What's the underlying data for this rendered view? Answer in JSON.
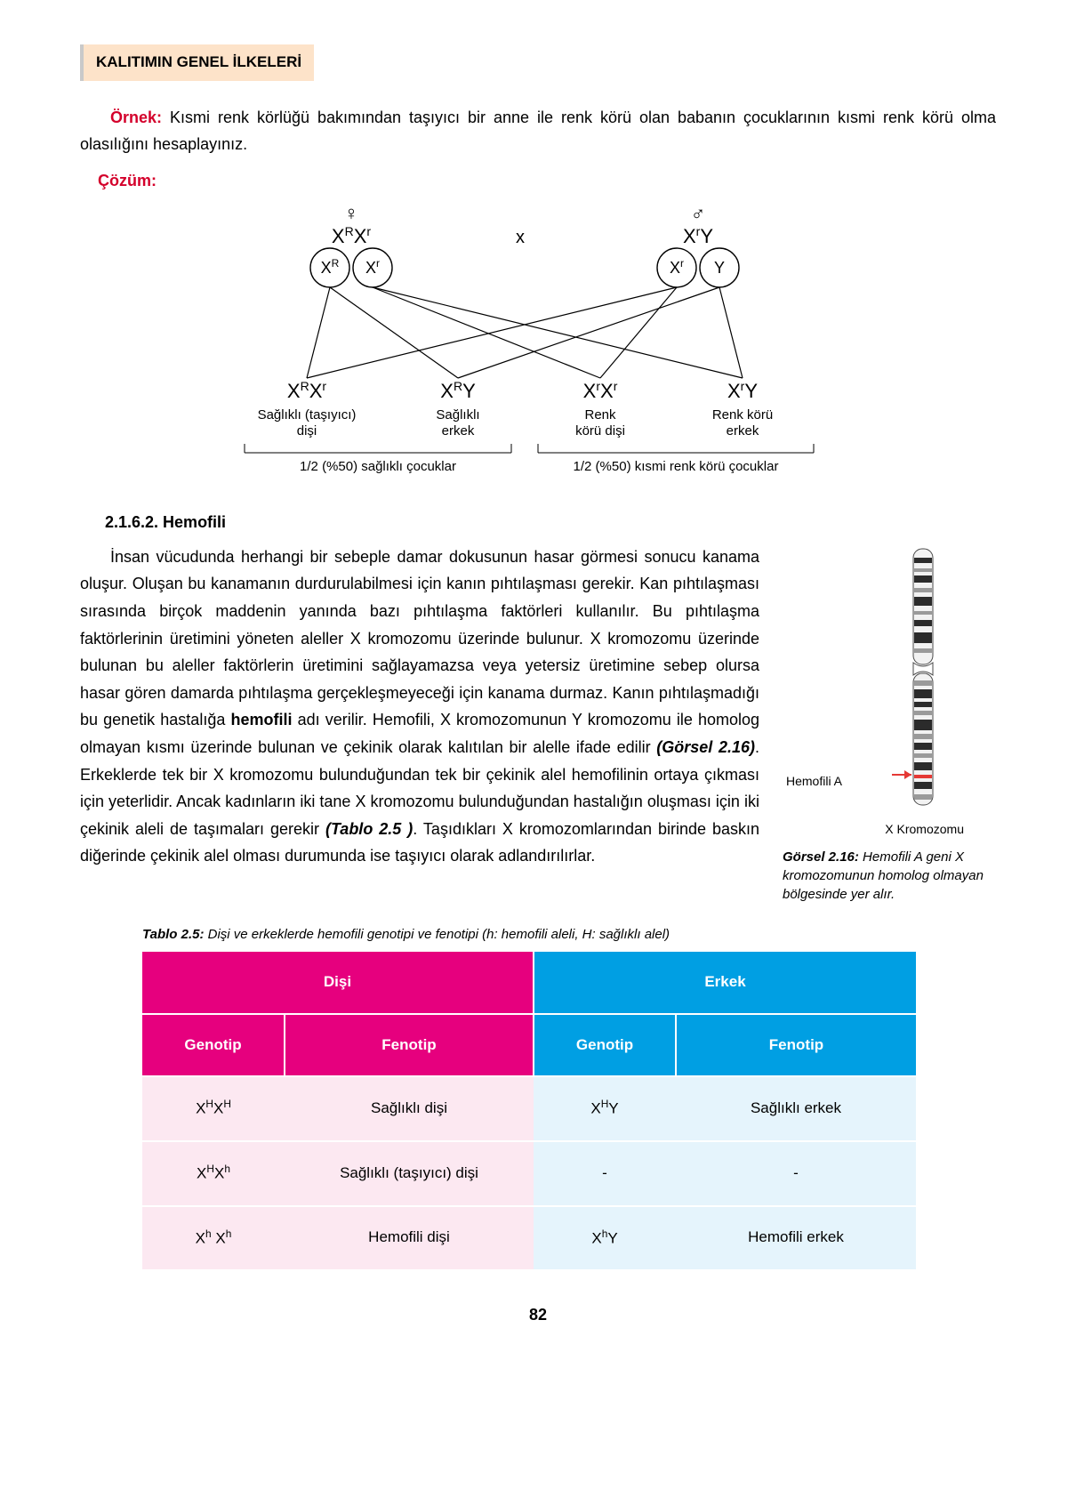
{
  "chapter": "KALITIMIN GENEL İLKELERİ",
  "example": {
    "label": "Örnek:",
    "text": " Kısmi renk körlüğü bakımından taşıyıcı bir anne ile renk körü olan babanın çocuklarının kısmi renk körü olma olasılığını hesaplayınız."
  },
  "solution_label": "Çözüm:",
  "punnett": {
    "mother_symbol": "♀",
    "father_symbol": "♂",
    "cross_x": "x",
    "parents": {
      "mother_genotype_html": "X<sup>R</sup>X<sup>r</sup>",
      "father_genotype_html": "X<sup>r</sup>Y",
      "mother_gametes": [
        "X<sup>R</sup>",
        "X<sup>r</sup>"
      ],
      "father_gametes": [
        "X<sup>r</sup>",
        "Y"
      ]
    },
    "offspring": [
      {
        "geno": "X<sup>R</sup>X<sup>r</sup>",
        "pheno1": "Sağlıklı (taşıyıcı)",
        "pheno2": "dişi"
      },
      {
        "geno": "X<sup>R</sup>Y",
        "pheno1": "Sağlıklı",
        "pheno2": "erkek"
      },
      {
        "geno": "X<sup>r</sup>X<sup>r</sup>",
        "pheno1": "Renk",
        "pheno2": "körü dişi"
      },
      {
        "geno": "X<sup>r</sup>Y",
        "pheno1": "Renk körü",
        "pheno2": "erkek"
      }
    ],
    "summary_left": "1/2 (%50) sağlıklı çocuklar",
    "summary_right": "1/2 (%50) kısmi renk körü çocuklar"
  },
  "section_heading": "2.1.6.2. Hemofili",
  "hemofili_paragraph_parts": {
    "p1": "İnsan vücudunda herhangi bir sebeple damar dokusunun hasar görmesi sonucu kanama oluşur. Oluşan bu kanamanın durdurulabilmesi için kanın pıhtılaşması gerekir. Kan pıhtılaşması sırasında birçok maddenin yanında bazı pıhtılaşma faktörleri kullanılır. Bu pıhtılaşma faktörlerinin üretimini yöneten aleller X kromozomu üzerinde bulunur. X kromozomu üzerinde bulunan bu aleller faktörlerin üretimini sağlayamazsa veya yetersiz üretimine sebep olursa hasar gören damarda pıhtılaşma gerçekleşmeyeceği için kanama durmaz. Kanın pıhtılaşmadığı bu genetik hastalığa ",
    "p1b": "hemofili",
    "p1c": " adı verilir. Hemofili, X kromozomunun Y kromozomu ile homolog olmayan kısmı üzerinde bulunan ve çekinik olarak kalıtılan bir alelle ifade edilir ",
    "ref1": "(Görsel 2.16)",
    "p1d": ". Erkeklerde tek bir X kromozomu bulunduğundan tek bir çekinik alel hemofilinin ortaya çıkması için yeterlidir. Ancak kadınların iki tane X kromozomu bulunduğundan hastalığın oluşması için iki çekinik aleli de taşımaları gerekir ",
    "ref2": "(Tablo 2.5 )",
    "p1e": ". Taşıdıkları X kromozomlarından birinde baskın diğerinde çekinik alel olması durumunda ise taşıyıcı olarak adlandırılırlar."
  },
  "figure": {
    "label_a": "Hemofili A",
    "label_x": "X Kromozomu",
    "caption_bold": "Görsel 2.16:",
    "caption_rest": " Hemofili A geni X kromozomunun homolog olmayan bölgesinde yer alır.",
    "arrow_color": "#e53935",
    "band_colors": {
      "dark": "#2b2b2b",
      "gray": "#9a9a9a",
      "light": "#e2e2e2",
      "outline": "#4a4a4a"
    }
  },
  "table": {
    "caption_bold": "Tablo 2.5:",
    "caption_rest": " Dişi ve erkeklerde hemofili genotipi ve fenotipi (h: hemofili aleli, H: sağlıklı alel)",
    "header": {
      "disi": "Dişi",
      "erkek": "Erkek",
      "genotip": "Genotip",
      "fenotip": "Fenotip"
    },
    "colors": {
      "pink": "#e6007e",
      "blue": "#009fe3",
      "pink_light": "#fce8f1",
      "blue_light": "#e5f4fc"
    },
    "rows": [
      {
        "d_geno": "X<sup>H</sup>X<sup>H</sup>",
        "d_feno": "Sağlıklı dişi",
        "e_geno": "X<sup>H</sup>Y",
        "e_feno": "Sağlıklı erkek"
      },
      {
        "d_geno": "X<sup>H</sup>X<sup>h</sup>",
        "d_feno": "Sağlıklı (taşıyıcı) dişi",
        "e_geno": "-",
        "e_feno": "-"
      },
      {
        "d_geno": "X<sup>h</sup> X<sup>h</sup>",
        "d_feno": "Hemofili dişi",
        "e_geno": "X<sup>h</sup>Y",
        "e_feno": "Hemofili erkek"
      }
    ]
  },
  "page_number": "82"
}
